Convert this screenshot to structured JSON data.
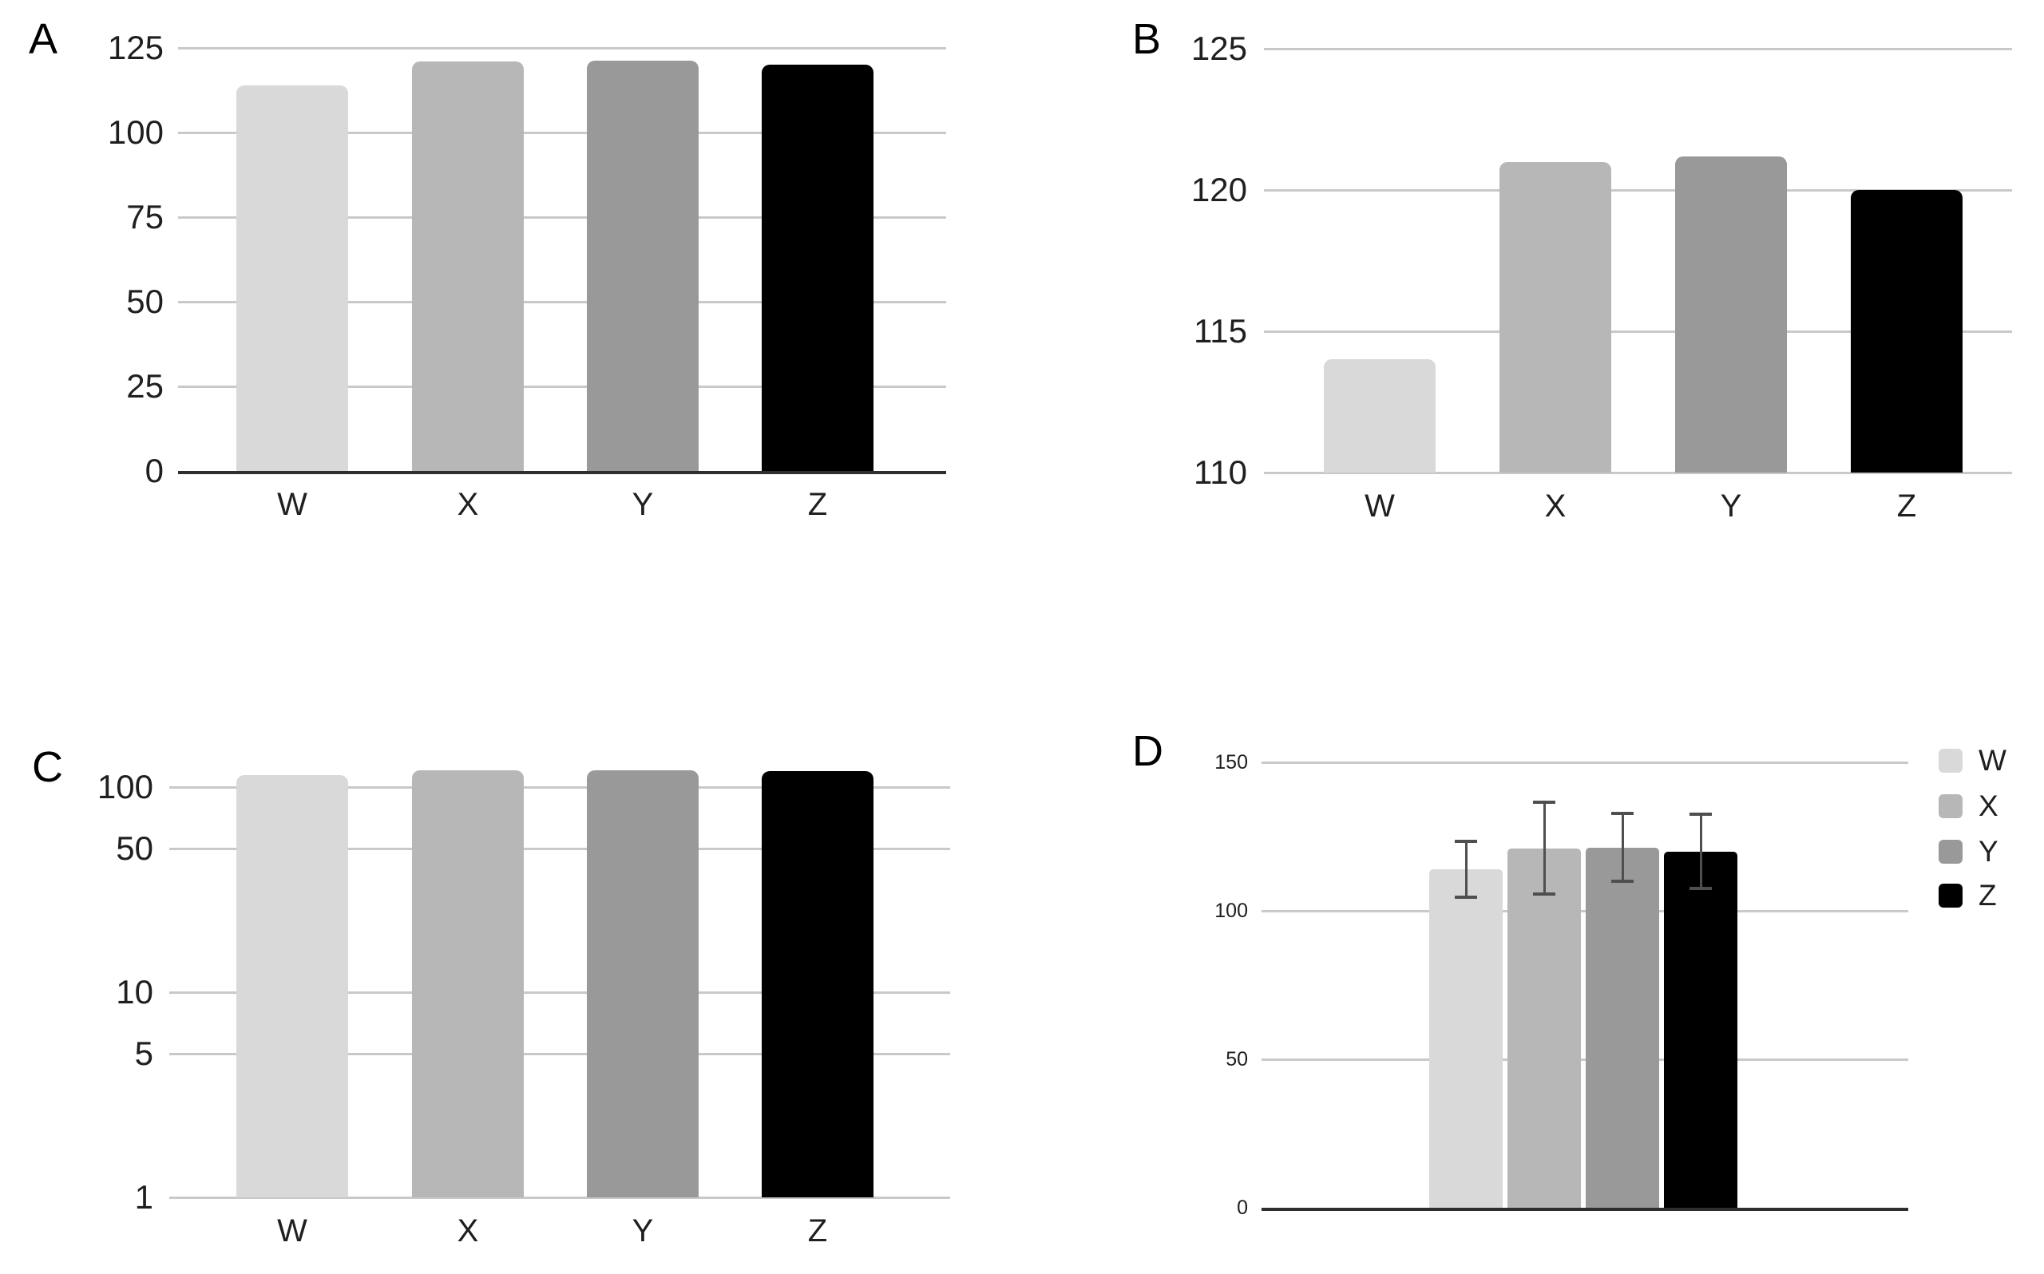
{
  "figure": {
    "description": "Four-panel grayscale bar chart figure comparing the same data under different y-axis treatments",
    "background": "#ffffff"
  },
  "colors": {
    "series": {
      "W": "#d9d9d9",
      "X": "#b7b7b7",
      "Y": "#999999",
      "Z": "#000000"
    },
    "gridline": "#c9c9c9",
    "axis_dark": "#2e2e2e",
    "error_bar": "#4f4f4f",
    "text": "#1f1f1f"
  },
  "chart_data": [
    {
      "id": "A",
      "panel_label": "A",
      "type": "bar",
      "scale": "linear",
      "categories": [
        "W",
        "X",
        "Y",
        "Z"
      ],
      "values": [
        114,
        121,
        121.2,
        120
      ],
      "yticks": [
        0,
        25,
        50,
        75,
        100,
        125
      ],
      "ylim": [
        0,
        125
      ],
      "grid": true,
      "dark_baseline": true,
      "show_category_labels": true,
      "legend": null
    },
    {
      "id": "B",
      "panel_label": "B",
      "type": "bar",
      "scale": "linear",
      "categories": [
        "W",
        "X",
        "Y",
        "Z"
      ],
      "values": [
        114,
        121,
        121.2,
        120
      ],
      "yticks": [
        110,
        115,
        120,
        125
      ],
      "ylim": [
        110,
        125
      ],
      "grid": true,
      "dark_baseline": false,
      "show_category_labels": true,
      "legend": null
    },
    {
      "id": "C",
      "panel_label": "C",
      "type": "bar",
      "scale": "log",
      "categories": [
        "W",
        "X",
        "Y",
        "Z"
      ],
      "values": [
        114,
        121,
        121.2,
        120
      ],
      "yticks": [
        1,
        5,
        10,
        50,
        100
      ],
      "ylim": [
        1,
        135
      ],
      "grid": true,
      "dark_baseline": false,
      "show_category_labels": true,
      "legend": null
    },
    {
      "id": "D",
      "panel_label": "D",
      "type": "bar",
      "scale": "linear",
      "categories": [
        "W",
        "X",
        "Y",
        "Z"
      ],
      "values": [
        114,
        121,
        121.2,
        120
      ],
      "errors": [
        10,
        16,
        12,
        13
      ],
      "yticks": [
        0,
        50,
        100,
        150
      ],
      "ylim": [
        0,
        150
      ],
      "grid": true,
      "dark_baseline": true,
      "show_category_labels": false,
      "legend": {
        "entries": [
          "W",
          "X",
          "Y",
          "Z"
        ],
        "position": "right"
      }
    }
  ]
}
